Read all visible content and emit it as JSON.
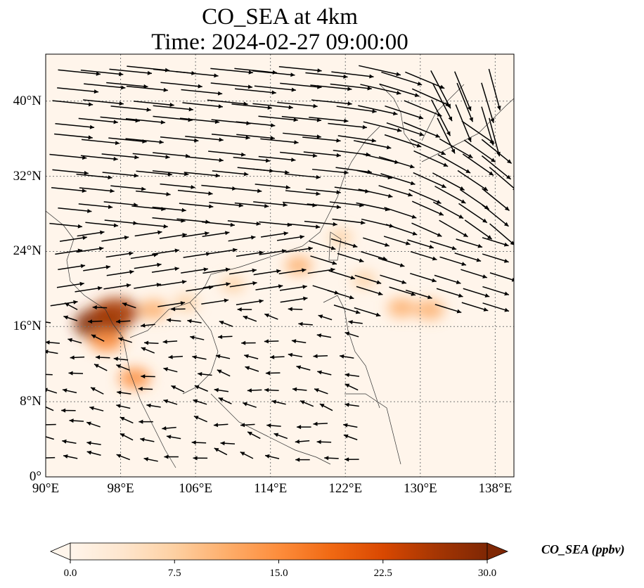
{
  "title": "CO_SEA at 4km",
  "subtitle": "Time: 2024-02-27 09:00:00",
  "lon_ticks": [
    "90°E",
    "98°E",
    "106°E",
    "114°E",
    "122°E",
    "130°E",
    "138°E"
  ],
  "lat_ticks": [
    "40°N",
    "32°N",
    "24°N",
    "16°N",
    "8°N",
    "0°"
  ],
  "extent": {
    "lon": [
      90,
      140
    ],
    "lat": [
      0,
      45
    ]
  },
  "gridlines": true,
  "colorbar": {
    "label": "CO_SEA (ppbv)",
    "ticks": [
      "0.0",
      "7.5",
      "15.0",
      "22.5",
      "30.0"
    ],
    "range": [
      0,
      30
    ],
    "extend": "both",
    "cmap": [
      "#fff5eb",
      "#fee6ce",
      "#fdd0a2",
      "#fdae6b",
      "#fd8d3c",
      "#f16913",
      "#d94801",
      "#a63603",
      "#7f2704"
    ]
  },
  "plumes": [
    {
      "lon": 95.8,
      "lat": 16.3,
      "value": 30
    },
    {
      "lon": 97.5,
      "lat": 17.5,
      "value": 26
    },
    {
      "lon": 96.5,
      "lat": 14.5,
      "value": 16
    },
    {
      "lon": 99.5,
      "lat": 10.5,
      "value": 14
    },
    {
      "lon": 101.5,
      "lat": 17.8,
      "value": 12
    },
    {
      "lon": 105,
      "lat": 18.5,
      "value": 9
    },
    {
      "lon": 110,
      "lat": 20.5,
      "value": 8
    },
    {
      "lon": 117,
      "lat": 22.5,
      "value": 10
    },
    {
      "lon": 121.5,
      "lat": 25.5,
      "value": 8
    },
    {
      "lon": 124,
      "lat": 21,
      "value": 8
    },
    {
      "lon": 128,
      "lat": 18,
      "value": 11
    },
    {
      "lon": 131,
      "lat": 17.8,
      "value": 12
    }
  ]
}
